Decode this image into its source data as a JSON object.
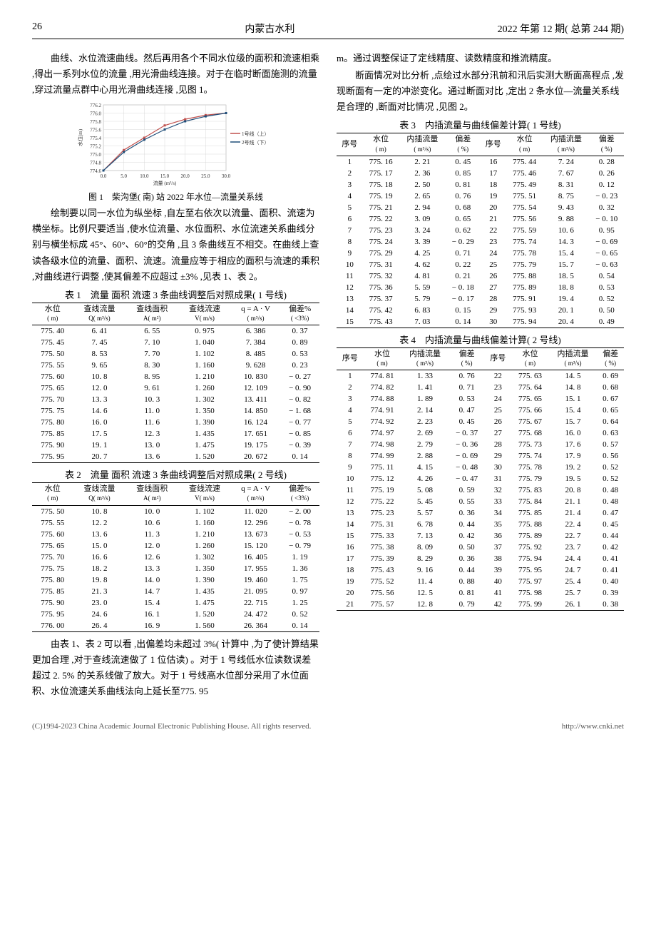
{
  "header": {
    "page_num": "26",
    "journal": "内蒙古水利",
    "issue": "2022 年第 12 期( 总第 244 期)"
  },
  "left_paras": [
    "曲线、水位流速曲线。然后再用各个不同水位级的面积和流速相乘 ,得出一系列水位的流量 ,用光滑曲线连接。对于在临时断面施测的流量 ,穿过流量点群中心用光滑曲线连接 ,见图 1。",
    "绘制要以同一水位为纵坐标 ,自左至右依次以流量、面积、流速为横坐标。比例尺要适当 ,使水位流量、水位面积、水位流速关系曲线分别与横坐标成 45°、60°、60°的交角 ,且 3 条曲线互不相交。在曲线上查读各级水位的流量、面积、流速。流量应等于相应的面积与流速的乘积 ,对曲线进行调整 ,使其偏差不应超过 ±3% ,见表 1、表 2。"
  ],
  "fig1_caption": "图 1 柴沟堡( 南) 站 2022 年水位—流量关系线",
  "chart": {
    "y_ticks": [
      "776.2",
      "776.0",
      "775.8",
      "775.6",
      "775.4",
      "775.2",
      "775.0",
      "774.8",
      "774.6"
    ],
    "y_label": "水位(m)",
    "x_ticks": [
      "0.0",
      "5.0",
      "10.0",
      "15.0",
      "20.0",
      "25.0",
      "30.0"
    ],
    "x_label": "流量 (m³/s)",
    "legend": [
      "1号线（上）",
      "2号线（下）"
    ],
    "colors": {
      "line1": "#c0504d",
      "line2": "#1f4e79",
      "grid": "#d9d9d9",
      "bg": "#ffffff"
    },
    "series1_y": [
      774.6,
      775.1,
      775.4,
      775.7,
      775.85,
      775.95,
      776.0
    ],
    "series2_y": [
      774.6,
      775.05,
      775.35,
      775.6,
      775.8,
      775.92,
      776.0
    ]
  },
  "table1": {
    "caption": "表 1 流量 面积 流速 3 条曲线调整后对照成果( 1 号线)",
    "headers": [
      [
        "水位",
        "( m)"
      ],
      [
        "查线流量",
        "Q( m³/s)"
      ],
      [
        "查线面积",
        "A( m²)"
      ],
      [
        "查线流速",
        "V( m/s)"
      ],
      [
        "q = A · V",
        "( m³/s)"
      ],
      [
        "偏差%",
        "( <3%)"
      ]
    ],
    "rows": [
      [
        "775. 40",
        "6. 41",
        "6. 55",
        "0. 975",
        "6. 386",
        "0. 37"
      ],
      [
        "775. 45",
        "7. 45",
        "7. 10",
        "1. 040",
        "7. 384",
        "0. 89"
      ],
      [
        "775. 50",
        "8. 53",
        "7. 70",
        "1. 102",
        "8. 485",
        "0. 53"
      ],
      [
        "775. 55",
        "9. 65",
        "8. 30",
        "1. 160",
        "9. 628",
        "0. 23"
      ],
      [
        "775. 60",
        "10. 8",
        "8. 95",
        "1. 210",
        "10. 830",
        "− 0. 27"
      ],
      [
        "775. 65",
        "12. 0",
        "9. 61",
        "1. 260",
        "12. 109",
        "− 0. 90"
      ],
      [
        "775. 70",
        "13. 3",
        "10. 3",
        "1. 302",
        "13. 411",
        "− 0. 82"
      ],
      [
        "775. 75",
        "14. 6",
        "11. 0",
        "1. 350",
        "14. 850",
        "− 1. 68"
      ],
      [
        "775. 80",
        "16. 0",
        "11. 6",
        "1. 390",
        "16. 124",
        "− 0. 77"
      ],
      [
        "775. 85",
        "17. 5",
        "12. 3",
        "1. 435",
        "17. 651",
        "− 0. 85"
      ],
      [
        "775. 90",
        "19. 1",
        "13. 0",
        "1. 475",
        "19. 175",
        "− 0. 39"
      ],
      [
        "775. 95",
        "20. 7",
        "13. 6",
        "1. 520",
        "20. 672",
        "0. 14"
      ]
    ]
  },
  "table2": {
    "caption": "表 2 流量 面积 流速 3 条曲线调整后对照成果( 2 号线)",
    "headers": [
      [
        "水位",
        "( m)"
      ],
      [
        "查线流量",
        "Q( m³/s)"
      ],
      [
        "查线面积",
        "A( m²)"
      ],
      [
        "查线流速",
        "V( m/s)"
      ],
      [
        "q = A · V",
        "( m³/s)"
      ],
      [
        "偏差%",
        "( <3%)"
      ]
    ],
    "rows": [
      [
        "775. 50",
        "10. 8",
        "10. 0",
        "1. 102",
        "11. 020",
        "− 2. 00"
      ],
      [
        "775. 55",
        "12. 2",
        "10. 6",
        "1. 160",
        "12. 296",
        "− 0. 78"
      ],
      [
        "775. 60",
        "13. 6",
        "11. 3",
        "1. 210",
        "13. 673",
        "− 0. 53"
      ],
      [
        "775. 65",
        "15. 0",
        "12. 0",
        "1. 260",
        "15. 120",
        "− 0. 79"
      ],
      [
        "775. 70",
        "16. 6",
        "12. 6",
        "1. 302",
        "16. 405",
        "1. 19"
      ],
      [
        "775. 75",
        "18. 2",
        "13. 3",
        "1. 350",
        "17. 955",
        "1. 36"
      ],
      [
        "775. 80",
        "19. 8",
        "14. 0",
        "1. 390",
        "19. 460",
        "1. 75"
      ],
      [
        "775. 85",
        "21. 3",
        "14. 7",
        "1. 435",
        "21. 095",
        "0. 97"
      ],
      [
        "775. 90",
        "23. 0",
        "15. 4",
        "1. 475",
        "22. 715",
        "1. 25"
      ],
      [
        "775. 95",
        "24. 6",
        "16. 1",
        "1. 520",
        "24. 472",
        "0. 52"
      ],
      [
        "776. 00",
        "26. 4",
        "16. 9",
        "1. 560",
        "26. 364",
        "0. 14"
      ]
    ]
  },
  "left_para3": "由表 1、表 2 可以看 ,出偏差均未超过 3%( 计算中 ,为了使计算结果更加合理 ,对于查线流速做了 1 位估读) 。对于 1 号线低水位读数误差超过 2. 5% 的关系线做了放大。对于 1 号线高水位部分采用了水位面积、水位流速关系曲线法向上延长至775. 95",
  "right_paras": [
    "m。通过调整保证了定线精度、读数精度和推流精度。",
    "断面情况对比分析 ,点绘过水部分汛前和汛后实测大断面高程点 ,发现断面有一定的冲淤变化。通过断面对比 ,定出 2 条水位—流量关系线是合理的 ,断面对比情况 ,见图 2。"
  ],
  "table3": {
    "caption": "表 3 内插流量与曲线偏差计算( 1 号线)",
    "headers": [
      [
        "序号",
        ""
      ],
      [
        "水位",
        "( m)"
      ],
      [
        "内插流量",
        "( m³/s)"
      ],
      [
        "偏差",
        "( %)"
      ],
      [
        "序号",
        ""
      ],
      [
        "水位",
        "( m)"
      ],
      [
        "内插流量",
        "( m³/s)"
      ],
      [
        "偏差",
        "( %)"
      ]
    ],
    "rows": [
      [
        "1",
        "775. 16",
        "2. 21",
        "0. 45",
        "16",
        "775. 44",
        "7. 24",
        "0. 28"
      ],
      [
        "2",
        "775. 17",
        "2. 36",
        "0. 85",
        "17",
        "775. 46",
        "7. 67",
        "0. 26"
      ],
      [
        "3",
        "775. 18",
        "2. 50",
        "0. 81",
        "18",
        "775. 49",
        "8. 31",
        "0. 12"
      ],
      [
        "4",
        "775. 19",
        "2. 65",
        "0. 76",
        "19",
        "775. 51",
        "8. 75",
        "− 0. 23"
      ],
      [
        "5",
        "775. 21",
        "2. 94",
        "0. 68",
        "20",
        "775. 54",
        "9. 43",
        "0. 32"
      ],
      [
        "6",
        "775. 22",
        "3. 09",
        "0. 65",
        "21",
        "775. 56",
        "9. 88",
        "− 0. 10"
      ],
      [
        "7",
        "775. 23",
        "3. 24",
        "0. 62",
        "22",
        "775. 59",
        "10. 6",
        "0. 95"
      ],
      [
        "8",
        "775. 24",
        "3. 39",
        "− 0. 29",
        "23",
        "775. 74",
        "14. 3",
        "− 0. 69"
      ],
      [
        "9",
        "775. 29",
        "4. 25",
        "0. 71",
        "24",
        "775. 78",
        "15. 4",
        "− 0. 65"
      ],
      [
        "10",
        "775. 31",
        "4. 62",
        "0. 22",
        "25",
        "775. 79",
        "15. 7",
        "− 0. 63"
      ],
      [
        "11",
        "775. 32",
        "4. 81",
        "0. 21",
        "26",
        "775. 88",
        "18. 5",
        "0. 54"
      ],
      [
        "12",
        "775. 36",
        "5. 59",
        "− 0. 18",
        "27",
        "775. 89",
        "18. 8",
        "0. 53"
      ],
      [
        "13",
        "775. 37",
        "5. 79",
        "− 0. 17",
        "28",
        "775. 91",
        "19. 4",
        "0. 52"
      ],
      [
        "14",
        "775. 42",
        "6. 83",
        "0. 15",
        "29",
        "775. 93",
        "20. 1",
        "0. 50"
      ],
      [
        "15",
        "775. 43",
        "7. 03",
        "0. 14",
        "30",
        "775. 94",
        "20. 4",
        "0. 49"
      ]
    ]
  },
  "table4": {
    "caption": "表 4 内插流量与曲线偏差计算( 2 号线)",
    "headers": [
      [
        "序号",
        ""
      ],
      [
        "水位",
        "( m)"
      ],
      [
        "内插流量",
        "( m³/s)"
      ],
      [
        "偏差",
        "( %)"
      ],
      [
        "序号",
        ""
      ],
      [
        "水位",
        "( m)"
      ],
      [
        "内插流量",
        "( m³/s)"
      ],
      [
        "偏差",
        "( %)"
      ]
    ],
    "rows": [
      [
        "1",
        "774. 81",
        "1. 33",
        "0. 76",
        "22",
        "775. 63",
        "14. 5",
        "0. 69"
      ],
      [
        "2",
        "774. 82",
        "1. 41",
        "0. 71",
        "23",
        "775. 64",
        "14. 8",
        "0. 68"
      ],
      [
        "3",
        "774. 88",
        "1. 89",
        "0. 53",
        "24",
        "775. 65",
        "15. 1",
        "0. 67"
      ],
      [
        "4",
        "774. 91",
        "2. 14",
        "0. 47",
        "25",
        "775. 66",
        "15. 4",
        "0. 65"
      ],
      [
        "5",
        "774. 92",
        "2. 23",
        "0. 45",
        "26",
        "775. 67",
        "15. 7",
        "0. 64"
      ],
      [
        "6",
        "774. 97",
        "2. 69",
        "− 0. 37",
        "27",
        "775. 68",
        "16. 0",
        "0. 63"
      ],
      [
        "7",
        "774. 98",
        "2. 79",
        "− 0. 36",
        "28",
        "775. 73",
        "17. 6",
        "0. 57"
      ],
      [
        "8",
        "774. 99",
        "2. 88",
        "− 0. 69",
        "29",
        "775. 74",
        "17. 9",
        "0. 56"
      ],
      [
        "9",
        "775. 11",
        "4. 15",
        "− 0. 48",
        "30",
        "775. 78",
        "19. 2",
        "0. 52"
      ],
      [
        "10",
        "775. 12",
        "4. 26",
        "− 0. 47",
        "31",
        "775. 79",
        "19. 5",
        "0. 52"
      ],
      [
        "11",
        "775. 19",
        "5. 08",
        "0. 59",
        "32",
        "775. 83",
        "20. 8",
        "0. 48"
      ],
      [
        "12",
        "775. 22",
        "5. 45",
        "0. 55",
        "33",
        "775. 84",
        "21. 1",
        "0. 48"
      ],
      [
        "13",
        "775. 23",
        "5. 57",
        "0. 36",
        "34",
        "775. 85",
        "21. 4",
        "0. 47"
      ],
      [
        "14",
        "775. 31",
        "6. 78",
        "0. 44",
        "35",
        "775. 88",
        "22. 4",
        "0. 45"
      ],
      [
        "15",
        "775. 33",
        "7. 13",
        "0. 42",
        "36",
        "775. 89",
        "22. 7",
        "0. 44"
      ],
      [
        "16",
        "775. 38",
        "8. 09",
        "0. 50",
        "37",
        "775. 92",
        "23. 7",
        "0. 42"
      ],
      [
        "17",
        "775. 39",
        "8. 29",
        "0. 36",
        "38",
        "775. 94",
        "24. 4",
        "0. 41"
      ],
      [
        "18",
        "775. 43",
        "9. 16",
        "0. 44",
        "39",
        "775. 95",
        "24. 7",
        "0. 41"
      ],
      [
        "19",
        "775. 52",
        "11. 4",
        "0. 88",
        "40",
        "775. 97",
        "25. 4",
        "0. 40"
      ],
      [
        "20",
        "775. 56",
        "12. 5",
        "0. 81",
        "41",
        "775. 98",
        "25. 7",
        "0. 39"
      ],
      [
        "21",
        "775. 57",
        "12. 8",
        "0. 79",
        "42",
        "775. 99",
        "26. 1",
        "0. 38"
      ]
    ]
  },
  "footer": {
    "left": "(C)1994-2023 China Academic Journal Electronic Publishing House. All rights reserved.",
    "right": "http://www.cnki.net"
  }
}
